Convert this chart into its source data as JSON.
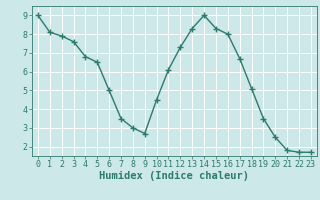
{
  "x": [
    0,
    1,
    2,
    3,
    4,
    5,
    6,
    7,
    8,
    9,
    10,
    11,
    12,
    13,
    14,
    15,
    16,
    17,
    18,
    19,
    20,
    21,
    22,
    23
  ],
  "y": [
    9.0,
    8.1,
    7.9,
    7.6,
    6.8,
    6.5,
    5.0,
    3.5,
    3.0,
    2.7,
    4.5,
    6.1,
    7.3,
    8.3,
    9.0,
    8.3,
    8.0,
    6.7,
    5.1,
    3.5,
    2.5,
    1.8,
    1.7,
    1.7
  ],
  "xlabel": "Humidex (Indice chaleur)",
  "xlim": [
    -0.5,
    23.5
  ],
  "ylim": [
    1.5,
    9.5
  ],
  "yticks": [
    2,
    3,
    4,
    5,
    6,
    7,
    8,
    9
  ],
  "xticks": [
    0,
    1,
    2,
    3,
    4,
    5,
    6,
    7,
    8,
    9,
    10,
    11,
    12,
    13,
    14,
    15,
    16,
    17,
    18,
    19,
    20,
    21,
    22,
    23
  ],
  "line_color": "#2d7a6e",
  "marker": "+",
  "bg_color": "#cce8e8",
  "grid_color": "#ffffff",
  "axis_color": "#2d7a6e",
  "label_color": "#2d7a6e",
  "tick_label_color": "#2d7a6e",
  "xlabel_fontsize": 7.5,
  "tick_fontsize": 6.0,
  "line_width": 1.0,
  "marker_size": 4.5,
  "marker_edge_width": 1.0
}
